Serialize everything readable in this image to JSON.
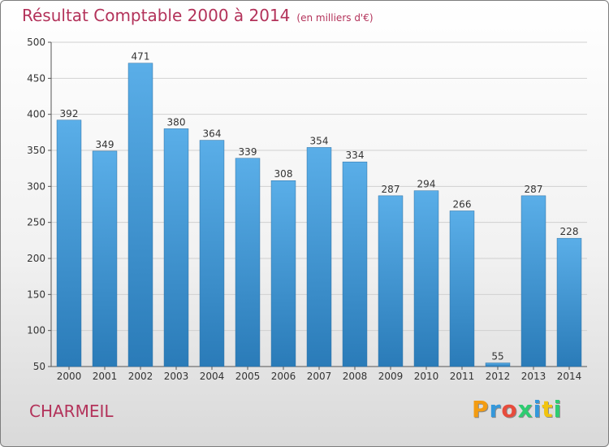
{
  "header": {
    "title": "Résultat Comptable 2000 à 2014",
    "subtitle": "(en milliers d'€)"
  },
  "commune": "CHARMEIL",
  "logo": {
    "text": "Proxiti",
    "letters": [
      "P",
      "r",
      "o",
      "x",
      "i",
      "t",
      "i"
    ],
    "colors": [
      "#f39c12",
      "#3498db",
      "#e74c3c",
      "#2ecc71",
      "#3498db",
      "#f1c40f",
      "#2ecc71"
    ]
  },
  "chart_data": {
    "type": "bar",
    "title": "Résultat Comptable 2000 à 2014",
    "subtitle": "(en milliers d'€)",
    "categories": [
      "2000",
      "2001",
      "2002",
      "2003",
      "2004",
      "2005",
      "2006",
      "2007",
      "2008",
      "2009",
      "2010",
      "2011",
      "2012",
      "2013",
      "2014"
    ],
    "values": [
      392,
      349,
      471,
      380,
      364,
      339,
      308,
      354,
      334,
      287,
      294,
      266,
      55,
      287,
      228
    ],
    "ylim": [
      50,
      500
    ],
    "yticks": [
      50,
      100,
      150,
      200,
      250,
      300,
      350,
      400,
      450,
      500
    ],
    "grid": true,
    "bar_color_top": "#5aaee8",
    "bar_color_bottom": "#2a7bb8"
  }
}
